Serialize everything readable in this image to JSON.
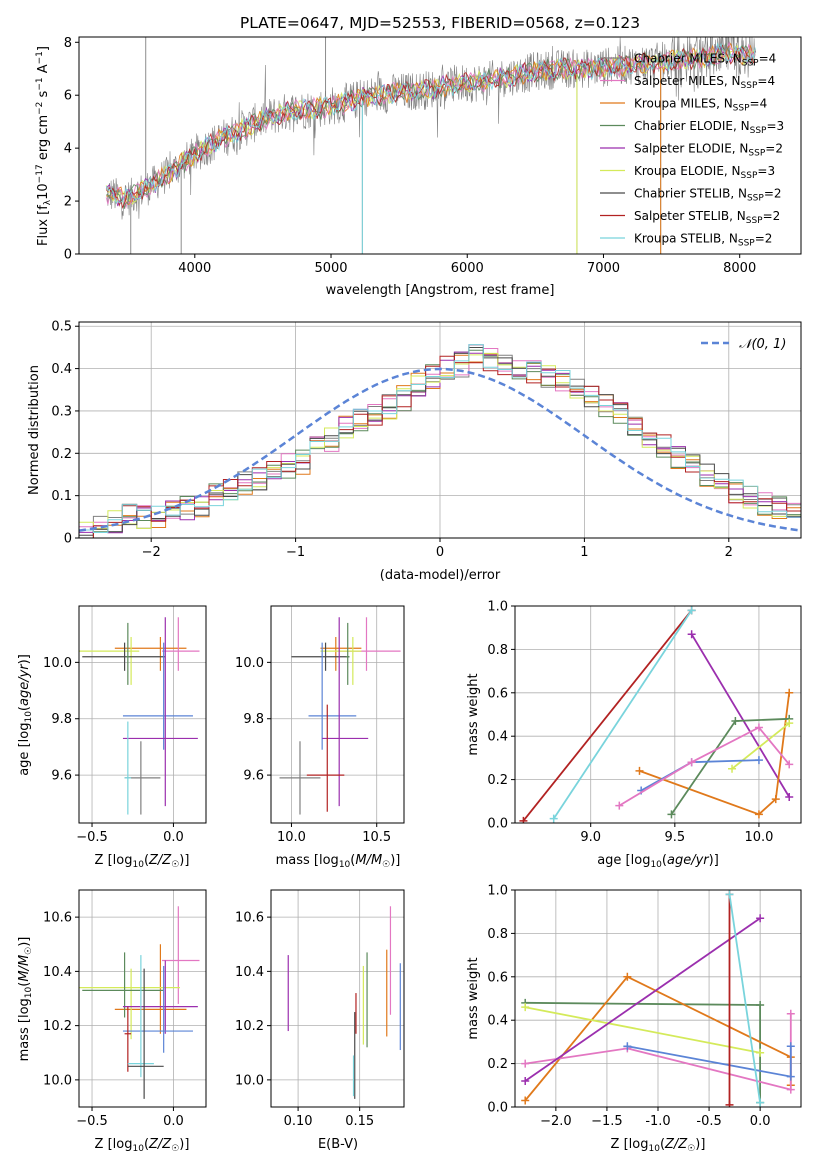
{
  "figure": {
    "title": "PLATE=0647, MJD=52553, FIBERID=0568, z=0.123"
  },
  "colors": {
    "chabrier_miles": "#808080",
    "salpeter_miles": "#e377c2",
    "kroupa_miles": "#e0791b",
    "chabrier_elodie": "#5c8a5c",
    "salpeter_elodie": "#9b2fae",
    "kroupa_elodie": "#d4ea5a",
    "chabrier_stelib": "#4a4a4a",
    "salpeter_stelib": "#b22222",
    "kroupa_stelib": "#79d4dc",
    "normal_curve": "#5b84d6",
    "grid": "#b0b0b0"
  },
  "chart_data": [
    {
      "id": "spectrum",
      "type": "line",
      "title": "PLATE=0647, MJD=52553, FIBERID=0568, z=0.123",
      "xlabel": "wavelength [Angstrom, rest frame]",
      "ylabel": "Flux [f_λ 10^-17 erg cm^-2 s^-1 A^-1]",
      "xlim": [
        3150,
        8450
      ],
      "ylim": [
        0,
        8.2
      ],
      "xticks": [
        4000,
        5000,
        6000,
        7000,
        8000
      ],
      "yticks": [
        0,
        2,
        4,
        6,
        8
      ],
      "grid": false,
      "legend_position": "top-right",
      "data_color": "#808080",
      "continuum": {
        "x": [
          3350,
          3500,
          3650,
          3800,
          3950,
          4100,
          4300,
          4500,
          4700,
          4900,
          5100,
          5300,
          5500,
          5700,
          5900,
          6100,
          6300,
          6500,
          6700,
          6900,
          7100,
          7300,
          7500,
          7700,
          7900,
          8100
        ],
        "y": [
          2.3,
          2.1,
          2.5,
          3.0,
          3.6,
          4.1,
          4.6,
          5.1,
          5.4,
          5.5,
          5.7,
          6.0,
          6.1,
          6.2,
          6.4,
          6.5,
          6.7,
          6.9,
          7.0,
          7.0,
          7.1,
          7.2,
          7.3,
          7.4,
          7.6,
          7.5
        ]
      },
      "series": [
        {
          "name": "Chabrier MILES",
          "nssp": 4,
          "color_key": "chabrier_miles"
        },
        {
          "name": "Salpeter MILES",
          "nssp": 4,
          "color_key": "salpeter_miles"
        },
        {
          "name": "Kroupa MILES",
          "nssp": 4,
          "color_key": "kroupa_miles"
        },
        {
          "name": "Chabrier ELODIE",
          "nssp": 3,
          "color_key": "chabrier_elodie"
        },
        {
          "name": "Salpeter ELODIE",
          "nssp": 2,
          "color_key": "salpeter_elodie"
        },
        {
          "name": "Kroupa ELODIE",
          "nssp": 3,
          "color_key": "kroupa_elodie"
        },
        {
          "name": "Chabrier STELIB",
          "nssp": 2,
          "color_key": "chabrier_stelib"
        },
        {
          "name": "Salpeter STELIB",
          "nssp": 2,
          "color_key": "salpeter_stelib"
        },
        {
          "name": "Kroupa STELIB",
          "nssp": 2,
          "color_key": "kroupa_stelib"
        }
      ]
    },
    {
      "id": "residuals",
      "type": "histogram",
      "xlabel": "(data-model)/error",
      "ylabel": "Normed distribution",
      "xlim": [
        -2.5,
        2.5
      ],
      "ylim": [
        0,
        0.51
      ],
      "xticks": [
        -2,
        -1,
        0,
        1,
        2
      ],
      "yticks": [
        0.0,
        0.1,
        0.2,
        0.3,
        0.4,
        0.5
      ],
      "grid": true,
      "legend_position": "top-right",
      "legend": [
        "𝒩(0, 1)"
      ],
      "bin_width": 0.1,
      "bin_start": -2.5,
      "reference_values": [
        0.01,
        0.03,
        0.04,
        0.05,
        0.05,
        0.05,
        0.06,
        0.07,
        0.08,
        0.1,
        0.12,
        0.13,
        0.14,
        0.16,
        0.17,
        0.18,
        0.21,
        0.23,
        0.26,
        0.28,
        0.29,
        0.31,
        0.33,
        0.36,
        0.38,
        0.4,
        0.41,
        0.43,
        0.42,
        0.41,
        0.4,
        0.39,
        0.38,
        0.37,
        0.36,
        0.33,
        0.31,
        0.29,
        0.27,
        0.24,
        0.22,
        0.19,
        0.17,
        0.15,
        0.13,
        0.11,
        0.1,
        0.08,
        0.07,
        0.06,
        0.05
      ],
      "series_count": 9
    },
    {
      "id": "age_vs_Z",
      "type": "errorbar",
      "xlabel": "Z [log10(Z/Z☉)]",
      "ylabel": "age  [log10(age/yr)]",
      "xlim": [
        -0.58,
        0.2
      ],
      "ylim": [
        9.43,
        10.2
      ],
      "xticks": [
        -0.5,
        0.0
      ],
      "yticks": [
        9.6,
        9.8,
        10.0
      ],
      "grid": true,
      "points": [
        {
          "color_key": "kroupa_miles",
          "x": -0.08,
          "xerr": [
            0.28,
            0.16
          ],
          "y": 10.05,
          "yerr": [
            0.08,
            0.04
          ]
        },
        {
          "color_key": "salpeter_miles",
          "x": 0.03,
          "xerr": [
            0.1,
            0.13
          ],
          "y": 10.04,
          "yerr": [
            0.07,
            0.12
          ]
        },
        {
          "color_key": "kroupa_elodie",
          "x": -0.26,
          "xerr": [
            0.32,
            0.05
          ],
          "y": 10.04,
          "yerr": [
            0.12,
            0.05
          ]
        },
        {
          "color_key": "chabrier_stelib",
          "x": -0.3,
          "xerr": [
            0.26,
            0.25
          ],
          "y": 10.02,
          "yerr": [
            0.05,
            0.05
          ]
        },
        {
          "color_key": "chabrier_elodie",
          "x": -0.28,
          "xerr": [
            0.01,
            0.01
          ],
          "y": 10.02,
          "yerr": [
            0.1,
            0.12
          ]
        },
        {
          "color_key": "normal_curve",
          "x": -0.06,
          "xerr": [
            0.25,
            0.18
          ],
          "y": 9.81,
          "yerr": [
            0.12,
            0.26
          ]
        },
        {
          "color_key": "salpeter_elodie",
          "x": -0.05,
          "xerr": [
            0.26,
            0.2
          ],
          "y": 9.73,
          "yerr": [
            0.24,
            0.43
          ]
        },
        {
          "color_key": "chabrier_miles",
          "x": -0.2,
          "xerr": [
            0.1,
            0.12
          ],
          "y": 9.59,
          "yerr": [
            0.13,
            0.13
          ]
        },
        {
          "color_key": "kroupa_stelib",
          "x": -0.28,
          "xerr": [
            0.02,
            0.02
          ],
          "y": 9.59,
          "yerr": [
            0.13,
            0.2
          ]
        }
      ]
    },
    {
      "id": "age_vs_mass",
      "type": "errorbar",
      "xlabel": "mass [log10(M/M☉)]",
      "ylabel": "",
      "xlim": [
        9.88,
        10.66
      ],
      "ylim": [
        9.43,
        10.2
      ],
      "xticks": [
        10.0,
        10.5
      ],
      "yticks": [
        9.6,
        9.8,
        10.0
      ],
      "grid": true,
      "points": [
        {
          "color_key": "kroupa_miles",
          "x": 10.26,
          "xerr": [
            0.09,
            0.15
          ],
          "y": 10.05,
          "yerr": [
            0.08,
            0.04
          ]
        },
        {
          "color_key": "salpeter_miles",
          "x": 10.44,
          "xerr": [
            0.16,
            0.2
          ],
          "y": 10.04,
          "yerr": [
            0.07,
            0.12
          ]
        },
        {
          "color_key": "kroupa_elodie",
          "x": 10.36,
          "xerr": [
            0.19,
            0.05
          ],
          "y": 10.04,
          "yerr": [
            0.12,
            0.05
          ]
        },
        {
          "color_key": "chabrier_stelib",
          "x": 10.2,
          "xerr": [
            0.2,
            0.14
          ],
          "y": 10.02,
          "yerr": [
            0.05,
            0.05
          ]
        },
        {
          "color_key": "chabrier_elodie",
          "x": 10.33,
          "xerr": [
            0.01,
            0.01
          ],
          "y": 10.02,
          "yerr": [
            0.1,
            0.12
          ]
        },
        {
          "color_key": "normal_curve",
          "x": 10.18,
          "xerr": [
            0.08,
            0.2
          ],
          "y": 9.81,
          "yerr": [
            0.12,
            0.26
          ]
        },
        {
          "color_key": "salpeter_elodie",
          "x": 10.28,
          "xerr": [
            0.1,
            0.17
          ],
          "y": 9.73,
          "yerr": [
            0.24,
            0.43
          ]
        },
        {
          "color_key": "chabrier_miles",
          "x": 10.05,
          "xerr": [
            0.12,
            0.12
          ],
          "y": 9.59,
          "yerr": [
            0.13,
            0.13
          ]
        },
        {
          "color_key": "salpeter_stelib",
          "x": 10.21,
          "xerr": [
            0.12,
            0.1
          ],
          "y": 9.6,
          "yerr": [
            0.13,
            0.25
          ]
        }
      ]
    },
    {
      "id": "weight_vs_age",
      "type": "line",
      "xlabel": "age  [log10(age/yr)]",
      "ylabel": "mass weight",
      "xlim": [
        8.55,
        10.25
      ],
      "ylim": [
        0,
        1.0
      ],
      "xticks": [
        9.0,
        9.5,
        10.0
      ],
      "yticks": [
        0.0,
        0.2,
        0.4,
        0.6,
        0.8,
        1.0
      ],
      "grid": true,
      "series": [
        {
          "color_key": "salpeter_stelib",
          "x": [
            8.6,
            9.6
          ],
          "y": [
            0.01,
            0.98
          ]
        },
        {
          "color_key": "kroupa_stelib",
          "x": [
            8.78,
            9.6
          ],
          "y": [
            0.02,
            0.98
          ]
        },
        {
          "color_key": "salpeter_elodie",
          "x": [
            9.6,
            10.18
          ],
          "y": [
            0.87,
            0.12
          ]
        },
        {
          "color_key": "kroupa_miles",
          "x": [
            9.29,
            10.0,
            10.1,
            10.18
          ],
          "y": [
            0.24,
            0.04,
            0.11,
            0.6
          ]
        },
        {
          "color_key": "chabrier_elodie",
          "x": [
            9.48,
            9.86,
            10.18
          ],
          "y": [
            0.04,
            0.47,
            0.48
          ]
        },
        {
          "color_key": "kroupa_elodie",
          "x": [
            9.84,
            10.18
          ],
          "y": [
            0.25,
            0.46
          ]
        },
        {
          "color_key": "normal_curve",
          "x": [
            9.3,
            9.6,
            10.0
          ],
          "y": [
            0.15,
            0.28,
            0.29
          ]
        },
        {
          "color_key": "salpeter_miles",
          "x": [
            9.17,
            9.6,
            10.0,
            10.18
          ],
          "y": [
            0.08,
            0.28,
            0.44,
            0.27
          ]
        }
      ]
    },
    {
      "id": "mass_vs_Z",
      "type": "errorbar",
      "xlabel": "Z [log10(Z/Z☉)]",
      "ylabel": "mass [log10(M/M☉)]",
      "xlim": [
        -0.58,
        0.2
      ],
      "ylim": [
        9.9,
        10.7
      ],
      "xticks": [
        -0.5,
        0.0
      ],
      "yticks": [
        10.0,
        10.2,
        10.4,
        10.6
      ],
      "grid": true,
      "points": [
        {
          "color_key": "salpeter_miles",
          "x": 0.03,
          "xerr": [
            0.1,
            0.13
          ],
          "y": 10.44,
          "yerr": [
            0.16,
            0.2
          ]
        },
        {
          "color_key": "kroupa_miles",
          "x": -0.08,
          "xerr": [
            0.28,
            0.16
          ],
          "y": 10.26,
          "yerr": [
            0.09,
            0.24
          ]
        },
        {
          "color_key": "kroupa_elodie",
          "x": -0.26,
          "xerr": [
            0.32,
            0.3
          ],
          "y": 10.34,
          "yerr": [
            0.19,
            0.07
          ]
        },
        {
          "color_key": "chabrier_elodie",
          "x": -0.3,
          "xerr": [
            0.26,
            0.24
          ],
          "y": 10.33,
          "yerr": [
            0.1,
            0.14
          ]
        },
        {
          "color_key": "salpeter_elodie",
          "x": -0.05,
          "xerr": [
            0.26,
            0.2
          ],
          "y": 10.27,
          "yerr": [
            0.1,
            0.17
          ]
        },
        {
          "color_key": "normal_curve",
          "x": -0.06,
          "xerr": [
            0.25,
            0.18
          ],
          "y": 10.18,
          "yerr": [
            0.08,
            0.24
          ]
        },
        {
          "color_key": "salpeter_stelib",
          "x": -0.28,
          "xerr": [
            0.02,
            0.02
          ],
          "y": 10.17,
          "yerr": [
            0.14,
            0.1
          ]
        },
        {
          "color_key": "kroupa_stelib",
          "x": -0.2,
          "xerr": [
            0.08,
            0.08
          ],
          "y": 10.06,
          "yerr": [
            0.05,
            0.4
          ]
        },
        {
          "color_key": "chabrier_stelib",
          "x": -0.18,
          "xerr": [
            0.1,
            0.12
          ],
          "y": 10.05,
          "yerr": [
            0.12,
            0.36
          ]
        }
      ]
    },
    {
      "id": "mass_vs_ebv",
      "type": "errorbar",
      "xlabel": "E(B-V)",
      "ylabel": "",
      "xlim": [
        0.078,
        0.186
      ],
      "ylim": [
        9.9,
        10.7
      ],
      "xticks": [
        0.1,
        0.15
      ],
      "yticks": [
        10.0,
        10.2,
        10.4,
        10.6
      ],
      "grid": true,
      "points": [
        {
          "color_key": "salpeter_elodie",
          "x": 0.092,
          "y": 10.32,
          "yerr": [
            0.14,
            0.14
          ]
        },
        {
          "color_key": "chabrier_stelib",
          "x": 0.146,
          "y": 10.05,
          "yerr": [
            0.12,
            0.2
          ]
        },
        {
          "color_key": "kroupa_stelib",
          "x": 0.145,
          "y": 10.04,
          "yerr": [
            0.1,
            0.05
          ]
        },
        {
          "color_key": "salpeter_stelib",
          "x": 0.147,
          "y": 10.22,
          "yerr": [
            0.05,
            0.1
          ]
        },
        {
          "color_key": "kroupa_elodie",
          "x": 0.153,
          "y": 10.27,
          "yerr": [
            0.14,
            0.15
          ]
        },
        {
          "color_key": "chabrier_elodie",
          "x": 0.156,
          "y": 10.29,
          "yerr": [
            0.17,
            0.18
          ]
        },
        {
          "color_key": "kroupa_miles",
          "x": 0.172,
          "y": 10.3,
          "yerr": [
            0.14,
            0.18
          ]
        },
        {
          "color_key": "salpeter_miles",
          "x": 0.175,
          "y": 10.44,
          "yerr": [
            0.2,
            0.2
          ]
        },
        {
          "color_key": "normal_curve",
          "x": 0.183,
          "y": 10.27,
          "yerr": [
            0.16,
            0.16
          ]
        }
      ]
    },
    {
      "id": "weight_vs_Z",
      "type": "line",
      "xlabel": "Z [log10(Z/Z☉)]",
      "ylabel": "mass weight",
      "xlim": [
        -2.4,
        0.4
      ],
      "ylim": [
        0,
        1.0
      ],
      "xticks": [
        -2.0,
        -1.5,
        -1.0,
        -0.5,
        0.0
      ],
      "yticks": [
        0.0,
        0.2,
        0.4,
        0.6,
        0.8,
        1.0
      ],
      "grid": true,
      "series": [
        {
          "color_key": "chabrier_elodie",
          "x": [
            -2.3,
            0.0,
            0.0
          ],
          "y": [
            0.48,
            0.47,
            0.02
          ]
        },
        {
          "color_key": "kroupa_miles",
          "x": [
            -2.3,
            -1.3,
            0.3,
            0.3
          ],
          "y": [
            0.03,
            0.6,
            0.23,
            0.1
          ]
        },
        {
          "color_key": "kroupa_elodie",
          "x": [
            -2.3,
            0.0
          ],
          "y": [
            0.46,
            0.25
          ]
        },
        {
          "color_key": "salpeter_miles",
          "x": [
            -2.3,
            -1.3,
            0.3,
            0.3
          ],
          "y": [
            0.2,
            0.27,
            0.08,
            0.43
          ]
        },
        {
          "color_key": "salpeter_elodie",
          "x": [
            -2.3,
            0.0
          ],
          "y": [
            0.12,
            0.87
          ]
        },
        {
          "color_key": "normal_curve",
          "x": [
            -1.3,
            0.3,
            0.3
          ],
          "y": [
            0.28,
            0.14,
            0.28
          ]
        },
        {
          "color_key": "salpeter_stelib",
          "x": [
            -0.3,
            -0.3
          ],
          "y": [
            0.01,
            0.98
          ]
        },
        {
          "color_key": "kroupa_stelib",
          "x": [
            -0.3,
            0.0
          ],
          "y": [
            0.98,
            0.02
          ]
        }
      ]
    }
  ]
}
